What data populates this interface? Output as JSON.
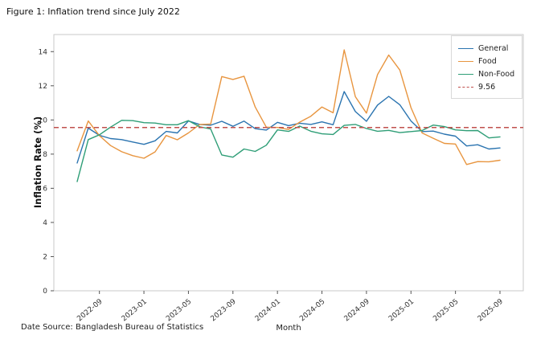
{
  "figure": {
    "title": "Figure 1: Inflation trend since July 2022",
    "source_note": "Date Source: Bangladesh Bureau of Statistics"
  },
  "chart_data": {
    "type": "line",
    "title": "Figure 1: Inflation trend since July 2022",
    "xlabel": "Month",
    "ylabel": "Inflation Rate (%)",
    "ylim": [
      0,
      15
    ],
    "yticks": [
      0,
      2,
      4,
      6,
      8,
      10,
      12,
      14
    ],
    "grid": false,
    "legend_position": "upper right",
    "x": [
      "2022-07",
      "2022-08",
      "2022-09",
      "2022-10",
      "2022-11",
      "2022-12",
      "2023-01",
      "2023-02",
      "2023-03",
      "2023-04",
      "2023-05",
      "2023-06",
      "2023-07",
      "2023-08",
      "2023-09",
      "2023-10",
      "2023-11",
      "2023-12",
      "2024-01",
      "2024-02",
      "2024-03",
      "2024-04",
      "2024-05",
      "2024-06",
      "2024-07",
      "2024-08",
      "2024-09",
      "2024-10",
      "2024-11",
      "2024-12",
      "2025-01",
      "2025-02",
      "2025-03",
      "2025-04",
      "2025-05",
      "2025-06",
      "2025-07",
      "2025-08",
      "2025-09"
    ],
    "xticks": [
      {
        "index": 2,
        "label": "2022-09"
      },
      {
        "index": 6,
        "label": "2023-01"
      },
      {
        "index": 10,
        "label": "2023-05"
      },
      {
        "index": 14,
        "label": "2023-09"
      },
      {
        "index": 18,
        "label": "2024-01"
      },
      {
        "index": 22,
        "label": "2024-05"
      },
      {
        "index": 26,
        "label": "2024-09"
      },
      {
        "index": 30,
        "label": "2025-01"
      },
      {
        "index": 34,
        "label": "2025-05"
      },
      {
        "index": 38,
        "label": "2025-09"
      }
    ],
    "series": [
      {
        "name": "General",
        "color": "#2b74b0",
        "values": [
          7.48,
          9.52,
          9.1,
          8.91,
          8.85,
          8.71,
          8.57,
          8.78,
          9.33,
          9.24,
          9.94,
          9.74,
          9.69,
          9.92,
          9.63,
          9.93,
          9.49,
          9.41,
          9.86,
          9.67,
          9.81,
          9.74,
          9.89,
          9.72,
          11.66,
          10.49,
          9.92,
          10.87,
          11.38,
          10.89,
          9.94,
          9.32,
          9.35,
          9.17,
          9.05,
          8.48,
          8.55,
          8.3,
          8.36
        ]
      },
      {
        "name": "Food",
        "color": "#e8953f",
        "values": [
          8.19,
          9.94,
          9.08,
          8.5,
          8.14,
          7.91,
          7.76,
          8.13,
          9.09,
          8.84,
          9.24,
          9.73,
          9.76,
          12.54,
          12.37,
          12.56,
          10.76,
          9.58,
          9.56,
          9.44,
          9.87,
          10.22,
          10.76,
          10.42,
          14.1,
          11.36,
          10.4,
          12.66,
          13.8,
          12.92,
          10.72,
          9.24,
          8.93,
          8.63,
          8.59,
          7.39,
          7.56,
          7.55,
          7.64
        ]
      },
      {
        "name": "Non-Food",
        "color": "#2f9e77",
        "values": [
          6.39,
          8.85,
          9.13,
          9.58,
          9.98,
          9.96,
          9.84,
          9.82,
          9.72,
          9.72,
          9.96,
          9.6,
          9.47,
          7.95,
          7.82,
          8.3,
          8.16,
          8.52,
          9.42,
          9.33,
          9.64,
          9.34,
          9.19,
          9.15,
          9.68,
          9.74,
          9.5,
          9.34,
          9.39,
          9.26,
          9.32,
          9.38,
          9.7,
          9.61,
          9.42,
          9.37,
          9.38,
          8.95,
          9.01
        ]
      }
    ],
    "reference_line": {
      "label": "9.56",
      "value": 9.56,
      "color": "#c0504d",
      "style": "dashed"
    }
  }
}
